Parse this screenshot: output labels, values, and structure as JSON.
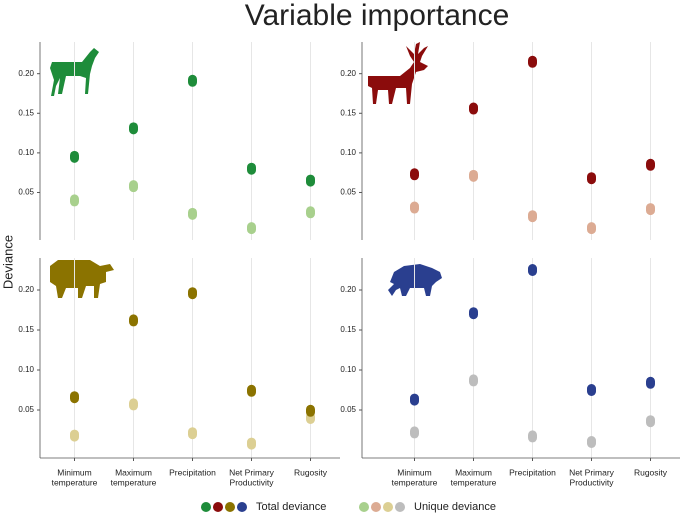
{
  "title": "Variable importance",
  "y_label": "Deviance",
  "legend": [
    {
      "name": "Total deviance",
      "colors": [
        "#1e8c3a",
        "#8b0c0c",
        "#8b7300",
        "#2a3f8f"
      ]
    },
    {
      "name": "Unique deviance",
      "colors": [
        "#a8d08d",
        "#dcab93",
        "#dccf93",
        "#bdbdbd"
      ]
    }
  ],
  "chart_data": [
    {
      "type": "scatter",
      "ylim": [
        -0.01,
        0.24
      ],
      "yticks": [
        0.05,
        {
          "value": 0.1,
          "label": "0.10"
        },
        0.15,
        {
          "value": 0.2,
          "label": "0.20"
        }
      ],
      "series": [
        {
          "color": "#1e8c3a",
          "values": [
            0.095,
            0.131,
            0.191,
            0.08,
            0.065
          ]
        },
        {
          "color": "#a8d08d",
          "values": [
            0.04,
            0.058,
            0.023,
            0.005,
            0.025
          ]
        }
      ]
    },
    {
      "type": "scatter",
      "ylim": [
        -0.01,
        0.24
      ],
      "yticks": [
        0.05,
        {
          "value": 0.1,
          "label": "0.10"
        },
        0.15,
        {
          "value": 0.2,
          "label": "0.20"
        }
      ],
      "series": [
        {
          "color": "#8b0c0c",
          "values": [
            0.073,
            0.156,
            0.215,
            0.068,
            0.085
          ]
        },
        {
          "color": "#dcab93",
          "values": [
            0.031,
            0.071,
            0.02,
            0.005,
            0.029
          ]
        }
      ]
    },
    {
      "type": "scatter",
      "ylim": [
        -0.01,
        0.24
      ],
      "yticks": [
        0.05,
        {
          "value": 0.1,
          "label": "0.10"
        },
        0.15,
        {
          "value": 0.2,
          "label": "0.20"
        }
      ],
      "categories": [
        [
          "Minimum",
          "temperature"
        ],
        [
          "Maximum",
          "temperature"
        ],
        [
          "Precipitation"
        ],
        [
          "Net Primary",
          "Productivity"
        ],
        [
          "Rugosity"
        ]
      ],
      "series": [
        {
          "color": "#8b7300",
          "values": [
            0.066,
            0.162,
            0.196,
            0.074,
            0.049
          ]
        },
        {
          "color": "#dccf93",
          "values": [
            0.018,
            0.057,
            0.021,
            0.008,
            0.04
          ]
        }
      ]
    },
    {
      "type": "scatter",
      "ylim": [
        -0.01,
        0.24
      ],
      "yticks": [
        0.05,
        {
          "value": 0.1,
          "label": "0.10"
        },
        0.15,
        {
          "value": 0.2,
          "label": "0.20"
        }
      ],
      "categories": [
        [
          "Minimum",
          "temperature"
        ],
        [
          "Maximum",
          "temperature"
        ],
        [
          "Precipitation"
        ],
        [
          "Net Primary",
          "Productivity"
        ],
        [
          "Rugosity"
        ]
      ],
      "series": [
        {
          "color": "#2a3f8f",
          "values": [
            0.063,
            0.171,
            0.225,
            0.075,
            0.084
          ]
        },
        {
          "color": "#bdbdbd",
          "values": [
            0.022,
            0.087,
            0.017,
            0.01,
            0.036
          ]
        }
      ]
    }
  ]
}
